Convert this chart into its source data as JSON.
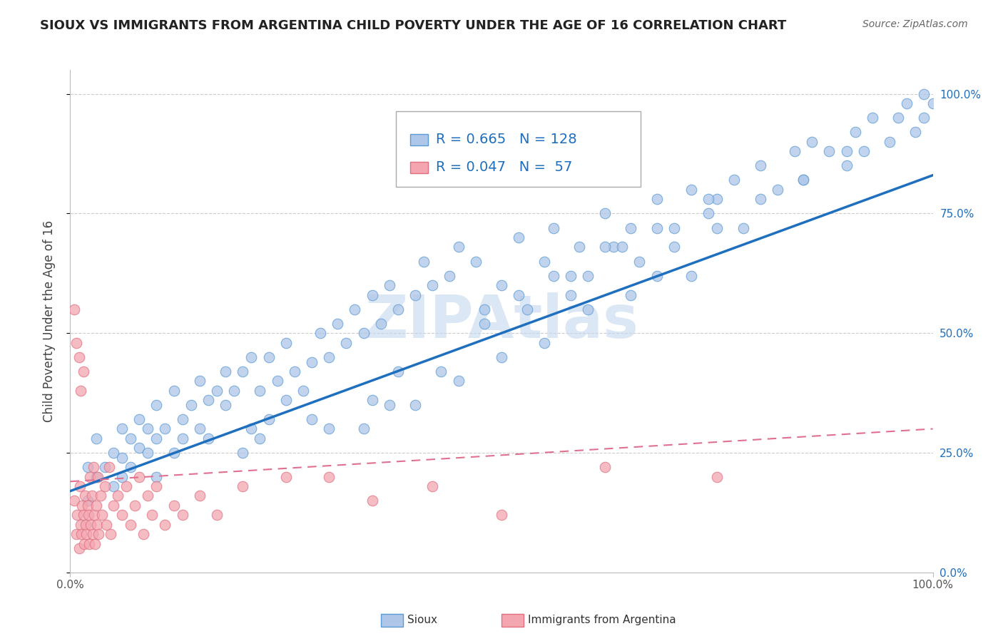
{
  "title": "SIOUX VS IMMIGRANTS FROM ARGENTINA CHILD POVERTY UNDER THE AGE OF 16 CORRELATION CHART",
  "source": "Source: ZipAtlas.com",
  "ylabel": "Child Poverty Under the Age of 16",
  "watermark": "ZIPAtlas",
  "legend_label1": "Sioux",
  "legend_label2": "Immigrants from Argentina",
  "R1": 0.665,
  "N1": 128,
  "R2": 0.047,
  "N2": 57,
  "xlim": [
    0.0,
    1.0
  ],
  "ylim": [
    0.0,
    1.05
  ],
  "ytick_labels": [
    "0.0%",
    "25.0%",
    "50.0%",
    "75.0%",
    "100.0%"
  ],
  "ytick_positions": [
    0.0,
    0.25,
    0.5,
    0.75,
    1.0
  ],
  "color_sioux": "#aec6e8",
  "color_sioux_edge": "#5b9bd5",
  "color_arg": "#f4a6b0",
  "color_arg_edge": "#e07080",
  "line_color_sioux": "#1f6fbf",
  "line_color_arg": "#e07090",
  "background_color": "#ffffff",
  "title_fontsize": 13,
  "source_fontsize": 10,
  "ylabel_fontsize": 12,
  "legend_fontsize": 14,
  "watermark_color": "#c5d8ef",
  "watermark_fontsize": 60,
  "sioux_x": [
    0.02,
    0.02,
    0.03,
    0.03,
    0.04,
    0.05,
    0.05,
    0.06,
    0.06,
    0.06,
    0.07,
    0.07,
    0.08,
    0.08,
    0.09,
    0.09,
    0.1,
    0.1,
    0.1,
    0.11,
    0.12,
    0.12,
    0.13,
    0.13,
    0.14,
    0.15,
    0.15,
    0.16,
    0.16,
    0.17,
    0.18,
    0.18,
    0.19,
    0.2,
    0.21,
    0.21,
    0.22,
    0.23,
    0.23,
    0.24,
    0.25,
    0.25,
    0.26,
    0.27,
    0.28,
    0.28,
    0.29,
    0.3,
    0.31,
    0.32,
    0.33,
    0.34,
    0.35,
    0.36,
    0.37,
    0.38,
    0.4,
    0.41,
    0.42,
    0.43,
    0.44,
    0.45,
    0.47,
    0.48,
    0.5,
    0.52,
    0.53,
    0.55,
    0.56,
    0.58,
    0.59,
    0.6,
    0.62,
    0.63,
    0.65,
    0.66,
    0.68,
    0.7,
    0.72,
    0.74,
    0.75,
    0.77,
    0.78,
    0.8,
    0.82,
    0.84,
    0.85,
    0.86,
    0.88,
    0.9,
    0.91,
    0.92,
    0.93,
    0.95,
    0.96,
    0.97,
    0.98,
    0.99,
    0.99,
    1.0,
    0.37,
    0.38,
    0.34,
    0.56,
    0.6,
    0.62,
    0.55,
    0.5,
    0.45,
    0.4,
    0.7,
    0.72,
    0.75,
    0.8,
    0.85,
    0.9,
    0.65,
    0.68,
    0.3,
    0.35,
    0.2,
    0.22,
    0.48,
    0.52,
    0.58,
    0.64,
    0.68,
    0.74
  ],
  "sioux_y": [
    0.15,
    0.22,
    0.2,
    0.28,
    0.22,
    0.18,
    0.25,
    0.2,
    0.3,
    0.24,
    0.22,
    0.28,
    0.26,
    0.32,
    0.25,
    0.3,
    0.28,
    0.35,
    0.2,
    0.3,
    0.25,
    0.38,
    0.32,
    0.28,
    0.35,
    0.3,
    0.4,
    0.36,
    0.28,
    0.38,
    0.35,
    0.42,
    0.38,
    0.42,
    0.45,
    0.3,
    0.38,
    0.45,
    0.32,
    0.4,
    0.48,
    0.36,
    0.42,
    0.38,
    0.44,
    0.32,
    0.5,
    0.45,
    0.52,
    0.48,
    0.55,
    0.5,
    0.58,
    0.52,
    0.6,
    0.55,
    0.58,
    0.65,
    0.6,
    0.42,
    0.62,
    0.68,
    0.65,
    0.55,
    0.6,
    0.7,
    0.55,
    0.65,
    0.72,
    0.58,
    0.68,
    0.62,
    0.75,
    0.68,
    0.72,
    0.65,
    0.78,
    0.72,
    0.8,
    0.75,
    0.78,
    0.82,
    0.72,
    0.85,
    0.8,
    0.88,
    0.82,
    0.9,
    0.88,
    0.85,
    0.92,
    0.88,
    0.95,
    0.9,
    0.95,
    0.98,
    0.92,
    0.95,
    1.0,
    0.98,
    0.35,
    0.42,
    0.3,
    0.62,
    0.55,
    0.68,
    0.48,
    0.45,
    0.4,
    0.35,
    0.68,
    0.62,
    0.72,
    0.78,
    0.82,
    0.88,
    0.58,
    0.62,
    0.3,
    0.36,
    0.25,
    0.28,
    0.52,
    0.58,
    0.62,
    0.68,
    0.72,
    0.78
  ],
  "arg_x": [
    0.005,
    0.007,
    0.008,
    0.01,
    0.011,
    0.012,
    0.013,
    0.014,
    0.015,
    0.016,
    0.017,
    0.018,
    0.019,
    0.02,
    0.021,
    0.022,
    0.023,
    0.024,
    0.025,
    0.026,
    0.027,
    0.028,
    0.029,
    0.03,
    0.031,
    0.032,
    0.033,
    0.035,
    0.037,
    0.04,
    0.042,
    0.045,
    0.047,
    0.05,
    0.055,
    0.06,
    0.065,
    0.07,
    0.075,
    0.08,
    0.085,
    0.09,
    0.095,
    0.1,
    0.11,
    0.12,
    0.13,
    0.15,
    0.17,
    0.2,
    0.25,
    0.3,
    0.35,
    0.42,
    0.5,
    0.62,
    0.75
  ],
  "arg_y": [
    0.15,
    0.08,
    0.12,
    0.05,
    0.18,
    0.1,
    0.08,
    0.14,
    0.12,
    0.06,
    0.16,
    0.1,
    0.08,
    0.14,
    0.12,
    0.06,
    0.2,
    0.1,
    0.16,
    0.08,
    0.22,
    0.12,
    0.06,
    0.14,
    0.1,
    0.2,
    0.08,
    0.16,
    0.12,
    0.18,
    0.1,
    0.22,
    0.08,
    0.14,
    0.16,
    0.12,
    0.18,
    0.1,
    0.14,
    0.2,
    0.08,
    0.16,
    0.12,
    0.18,
    0.1,
    0.14,
    0.12,
    0.16,
    0.12,
    0.18,
    0.2,
    0.2,
    0.15,
    0.18,
    0.12,
    0.22,
    0.2
  ],
  "arg_highx": [
    0.005,
    0.007,
    0.01,
    0.012,
    0.015
  ],
  "arg_highy": [
    0.55,
    0.48,
    0.45,
    0.38,
    0.42
  ],
  "sioux_line_x0": 0.0,
  "sioux_line_y0": 0.17,
  "sioux_line_x1": 1.0,
  "sioux_line_y1": 0.83,
  "arg_line_x0": 0.0,
  "arg_line_y0": 0.19,
  "arg_line_x1": 1.0,
  "arg_line_y1": 0.3
}
